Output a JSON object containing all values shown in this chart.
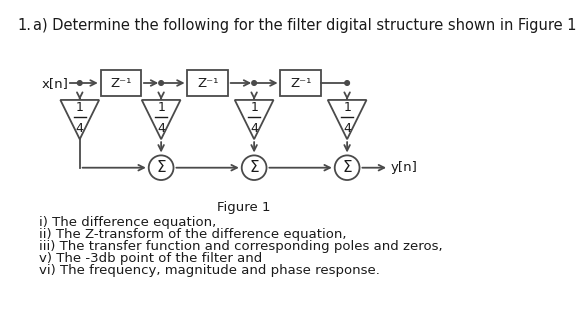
{
  "title_number": "1.",
  "title_text": "a) Determine the following for the filter digital structure shown in Figure 1",
  "title_fontsize": 10.5,
  "figure_label": "Figure 1",
  "input_label": "x[n]",
  "output_label": "y[n]",
  "sum_symbol": "Σ",
  "items": [
    "i) The difference equation,",
    "ii) The Z-transform of the difference equation,",
    "iii) The transfer function and corresponding poles and zeros,",
    "v) The -3db point of the filter and",
    "vi) The frequency, magnitude and phase response."
  ],
  "bg_color": "#ffffff",
  "box_color": "#4a4a4a",
  "line_color": "#4a4a4a",
  "text_color": "#1a1a1a",
  "items_fontsize": 9.5,
  "figure_label_fontsize": 9.5,
  "diagram_fontsize": 9.5,
  "lw": 1.3
}
